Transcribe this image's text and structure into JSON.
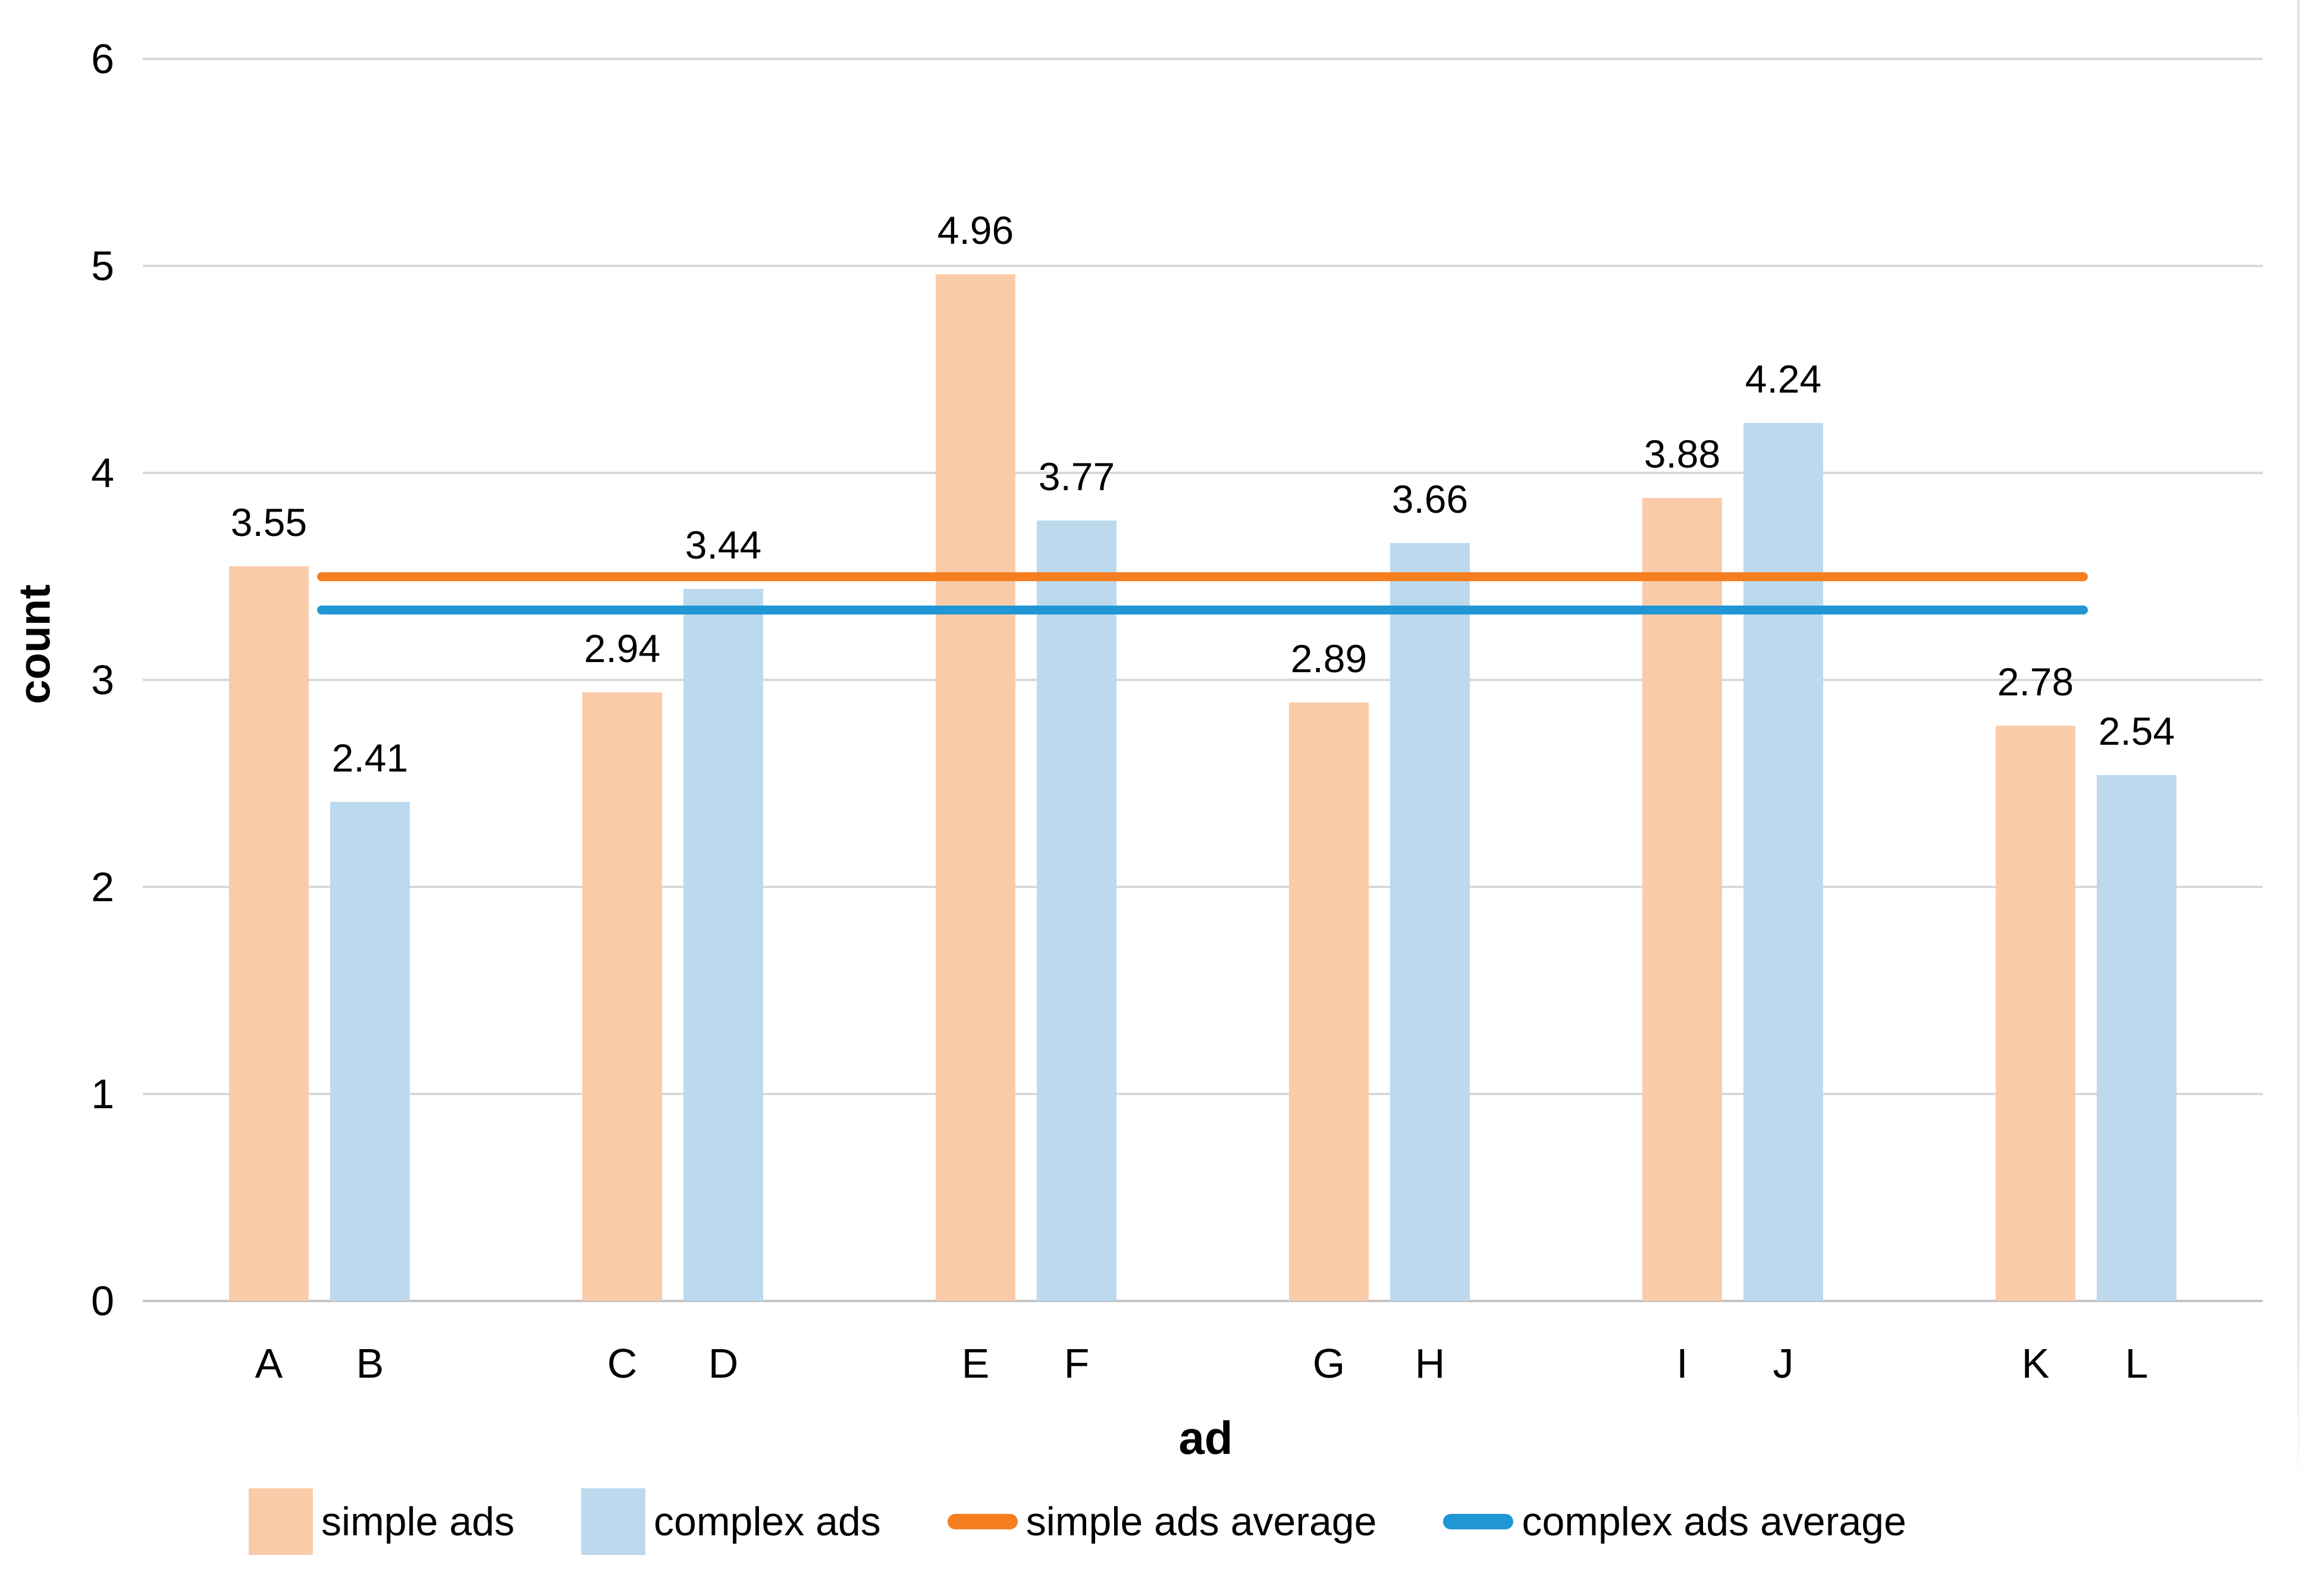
{
  "chart_data": {
    "type": "bar",
    "title": "",
    "xlabel": "ad",
    "ylabel": "count",
    "ylim": [
      0,
      6
    ],
    "yticks": [
      0,
      1,
      2,
      3,
      4,
      5,
      6
    ],
    "grid": true,
    "legend_position": "bottom",
    "categories": [
      "A",
      "B",
      "C",
      "D",
      "E",
      "F",
      "G",
      "H",
      "I",
      "J",
      "K",
      "L"
    ],
    "bars": [
      {
        "category": "A",
        "series": "simple ads",
        "value": 3.55,
        "label": "3.55"
      },
      {
        "category": "B",
        "series": "complex ads",
        "value": 2.41,
        "label": "2.41"
      },
      {
        "category": "C",
        "series": "simple ads",
        "value": 2.94,
        "label": "2.94"
      },
      {
        "category": "D",
        "series": "complex ads",
        "value": 3.44,
        "label": "3.44"
      },
      {
        "category": "E",
        "series": "simple ads",
        "value": 4.96,
        "label": "4.96"
      },
      {
        "category": "F",
        "series": "complex ads",
        "value": 3.77,
        "label": "3.77"
      },
      {
        "category": "G",
        "series": "simple ads",
        "value": 2.89,
        "label": "2.89"
      },
      {
        "category": "H",
        "series": "complex ads",
        "value": 3.66,
        "label": "3.66"
      },
      {
        "category": "I",
        "series": "simple ads",
        "value": 3.88,
        "label": "3.88"
      },
      {
        "category": "J",
        "series": "complex ads",
        "value": 4.24,
        "label": "4.24"
      },
      {
        "category": "K",
        "series": "simple ads",
        "value": 2.78,
        "label": "2.78"
      },
      {
        "category": "L",
        "series": "complex ads",
        "value": 2.54,
        "label": "2.54"
      }
    ],
    "series": [
      {
        "name": "simple ads",
        "color": "#FACBA9",
        "values": [
          3.55,
          2.94,
          4.96,
          2.89,
          3.88,
          2.78
        ]
      },
      {
        "name": "complex ads",
        "color": "#BDD9EE",
        "values": [
          2.41,
          3.44,
          3.77,
          3.66,
          4.24,
          2.54
        ]
      }
    ],
    "average_lines": [
      {
        "name": "simple ads average",
        "value": 3.5,
        "color": "#F57E20"
      },
      {
        "name": "complex ads average",
        "value": 3.34,
        "color": "#2096D4"
      }
    ],
    "legend_items": [
      {
        "type": "patch",
        "label": "simple ads",
        "color": "#FACBA9"
      },
      {
        "type": "patch",
        "label": "complex ads",
        "color": "#BDD9EE"
      },
      {
        "type": "line",
        "label": "simple ads average",
        "color": "#F57E20"
      },
      {
        "type": "line",
        "label": "complex ads average",
        "color": "#2096D4"
      }
    ],
    "colors": {
      "gridline": "#D9D9D9",
      "axis_line": "#C3C3C3",
      "text": "#000000"
    }
  }
}
